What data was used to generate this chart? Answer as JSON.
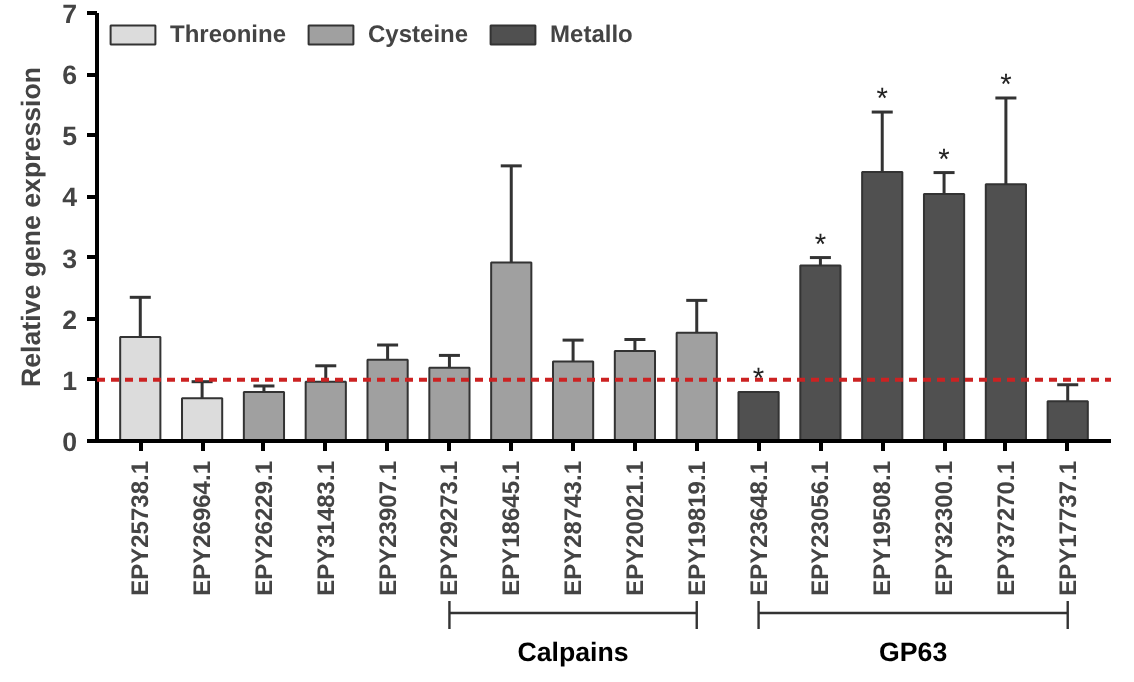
{
  "chart_data": {
    "type": "bar",
    "ylabel": "Relative gene expression",
    "categories": [
      "EPY25738.1",
      "EPY26964.1",
      "EPY26229.1",
      "EPY31483.1",
      "EPY23907.1",
      "EPY29273.1",
      "EPY18645.1",
      "EPY28743.1",
      "EPY20021.1",
      "EPY19819.1",
      "EPY23648.1",
      "EPY23056.1",
      "EPY19508.1",
      "EPY32300.1",
      "EPY37270.1",
      "EPY17737.1"
    ],
    "series": [
      {
        "name": "Threonine",
        "color": "#dcdcdc",
        "values": [
          1.7,
          0.7,
          null,
          null,
          null,
          null,
          null,
          null,
          null,
          null,
          null,
          null,
          null,
          null,
          null,
          null
        ],
        "errors": [
          [
            1.7,
            2.35
          ],
          [
            0.7,
            0.97
          ],
          null,
          null,
          null,
          null,
          null,
          null,
          null,
          null,
          null,
          null,
          null,
          null,
          null,
          null
        ]
      },
      {
        "name": "Cysteine",
        "color": "#a0a0a0",
        "values": [
          null,
          null,
          0.8,
          0.97,
          1.33,
          1.2,
          2.92,
          1.3,
          1.47,
          1.77,
          null,
          null,
          null,
          null,
          null,
          null
        ],
        "errors": [
          null,
          null,
          [
            0.8,
            0.9
          ],
          [
            0.97,
            1.23
          ],
          [
            1.33,
            1.57
          ],
          [
            1.2,
            1.4
          ],
          [
            2.92,
            4.5
          ],
          [
            1.3,
            1.65
          ],
          [
            1.47,
            1.66
          ],
          [
            1.77,
            2.3
          ],
          null,
          null,
          null,
          null,
          null,
          null
        ]
      },
      {
        "name": "Metallo",
        "color": "#505050",
        "values": [
          null,
          null,
          null,
          null,
          null,
          null,
          null,
          null,
          null,
          null,
          0.8,
          2.87,
          4.4,
          4.04,
          4.2,
          0.65
        ],
        "errors": [
          null,
          null,
          null,
          null,
          null,
          null,
          null,
          null,
          null,
          null,
          null,
          [
            2.87,
            3.0
          ],
          [
            4.4,
            5.38
          ],
          [
            4.04,
            4.39
          ],
          [
            4.2,
            5.61
          ],
          [
            0.65,
            0.92
          ]
        ]
      }
    ],
    "ylim": [
      0,
      7
    ],
    "yticks": [
      0,
      1,
      2,
      3,
      4,
      5,
      6,
      7
    ],
    "grid": false,
    "legend": "top left",
    "ref_lines": [
      {
        "axis": "y",
        "value": 1,
        "label": null,
        "color": "#cc2222",
        "line_style": "dashed"
      }
    ],
    "annotations": [
      {
        "text": "*",
        "x": "EPY23648.1",
        "y": 0.8
      },
      {
        "text": "*",
        "x": "EPY23056.1",
        "y": 3.0
      },
      {
        "text": "*",
        "x": "EPY19508.1",
        "y": 5.38
      },
      {
        "text": "*",
        "x": "EPY32300.1",
        "y": 4.39
      },
      {
        "text": "*",
        "x": "EPY37270.1",
        "y": 5.61
      },
      "Calpains",
      "GP63"
    ]
  }
}
